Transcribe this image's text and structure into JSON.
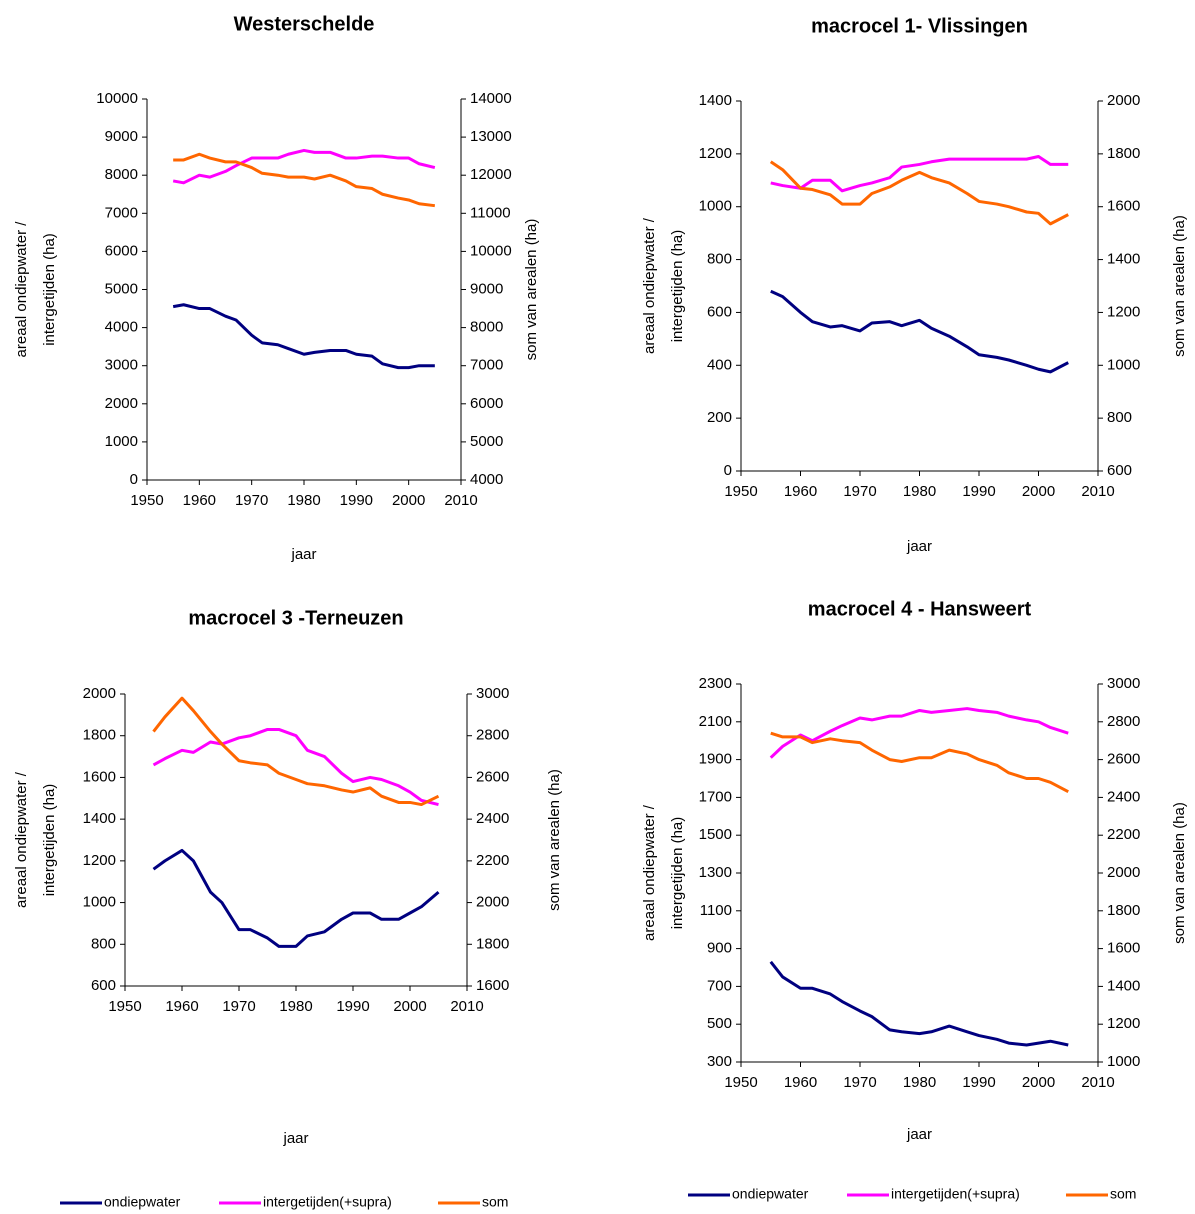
{
  "chart_data": [
    {
      "type": "line",
      "title": "Westerschelde",
      "xlabel": "jaar",
      "ylabel": [
        "areaal ondiepwater /",
        "intergetijden (ha)"
      ],
      "y2label": "som van arealen (ha)",
      "xlim": [
        1950,
        2010
      ],
      "xticks": [
        1950,
        1960,
        1970,
        1980,
        1990,
        2000,
        2010
      ],
      "ylim": [
        0,
        10000
      ],
      "yticks": [
        0,
        1000,
        2000,
        3000,
        4000,
        5000,
        6000,
        7000,
        8000,
        9000,
        10000
      ],
      "y2lim": [
        4000,
        14000
      ],
      "y2ticks": [
        4000,
        5000,
        6000,
        7000,
        8000,
        9000,
        10000,
        11000,
        12000,
        13000,
        14000
      ],
      "x": [
        1955,
        1957,
        1960,
        1962,
        1965,
        1967,
        1970,
        1972,
        1975,
        1977,
        1980,
        1982,
        1985,
        1988,
        1990,
        1993,
        1995,
        1998,
        2000,
        2002,
        2005
      ],
      "series": [
        {
          "name": "ondiepwater",
          "color": "#000080",
          "values": [
            4550,
            4600,
            4500,
            4500,
            4300,
            4200,
            3800,
            3600,
            3550,
            3450,
            3300,
            3350,
            3400,
            3400,
            3300,
            3250,
            3050,
            2950,
            2950,
            3000,
            3000
          ]
        },
        {
          "name": "intergetijden(+supra)",
          "color": "#ff00ff",
          "values": [
            7850,
            7800,
            8000,
            7950,
            8100,
            8250,
            8450,
            8450,
            8450,
            8550,
            8650,
            8600,
            8600,
            8450,
            8450,
            8500,
            8500,
            8450,
            8450,
            8300,
            8200
          ]
        },
        {
          "name": "som",
          "color": "#ff6600",
          "axis": "y2",
          "values": [
            12400,
            12400,
            12550,
            12450,
            12350,
            12350,
            12200,
            12050,
            12000,
            11950,
            11950,
            11900,
            12000,
            11850,
            11700,
            11650,
            11500,
            11400,
            11350,
            11250,
            11200
          ]
        }
      ]
    },
    {
      "type": "line",
      "title": "macrocel 1- Vlissingen",
      "xlabel": "jaar",
      "ylabel": [
        "areaal ondiepwater /",
        "intergetijden (ha)"
      ],
      "y2label": "som van arealen (ha)",
      "xlim": [
        1950,
        2010
      ],
      "xticks": [
        1950,
        1960,
        1970,
        1980,
        1990,
        2000,
        2010
      ],
      "ylim": [
        0,
        1400
      ],
      "yticks": [
        0,
        200,
        400,
        600,
        800,
        1000,
        1200,
        1400
      ],
      "y2lim": [
        600,
        2000
      ],
      "y2ticks": [
        600,
        800,
        1000,
        1200,
        1400,
        1600,
        1800,
        2000
      ],
      "x": [
        1955,
        1957,
        1960,
        1962,
        1965,
        1967,
        1970,
        1972,
        1975,
        1977,
        1980,
        1982,
        1985,
        1988,
        1990,
        1993,
        1995,
        1998,
        2000,
        2002,
        2005
      ],
      "series": [
        {
          "name": "ondiepwater",
          "color": "#000080",
          "values": [
            680,
            660,
            600,
            565,
            545,
            550,
            530,
            560,
            565,
            550,
            570,
            540,
            510,
            470,
            440,
            430,
            420,
            400,
            385,
            375,
            410
          ]
        },
        {
          "name": "intergetijden(+supra)",
          "color": "#ff00ff",
          "values": [
            1090,
            1080,
            1070,
            1100,
            1100,
            1060,
            1080,
            1090,
            1110,
            1150,
            1160,
            1170,
            1180,
            1180,
            1180,
            1180,
            1180,
            1180,
            1190,
            1160,
            1160
          ]
        },
        {
          "name": "som",
          "color": "#ff6600",
          "axis": "y2",
          "values": [
            1770,
            1740,
            1670,
            1665,
            1645,
            1610,
            1610,
            1650,
            1675,
            1700,
            1730,
            1710,
            1690,
            1650,
            1620,
            1610,
            1600,
            1580,
            1575,
            1535,
            1570
          ]
        }
      ]
    },
    {
      "type": "line",
      "title": "macrocel 3 -Terneuzen",
      "xlabel": "jaar",
      "ylabel": [
        "areaal ondiepwater /",
        "intergetijden (ha)"
      ],
      "y2label": "som van arealen (ha)",
      "xlim": [
        1950,
        2010
      ],
      "xticks": [
        1950,
        1960,
        1970,
        1980,
        1990,
        2000,
        2010
      ],
      "ylim": [
        600,
        2000
      ],
      "yticks": [
        600,
        800,
        1000,
        1200,
        1400,
        1600,
        1800,
        2000
      ],
      "y2lim": [
        1600,
        3000
      ],
      "y2ticks": [
        1600,
        1800,
        2000,
        2200,
        2400,
        2600,
        2800,
        3000
      ],
      "x": [
        1955,
        1957,
        1960,
        1962,
        1965,
        1967,
        1970,
        1972,
        1975,
        1977,
        1980,
        1982,
        1985,
        1988,
        1990,
        1993,
        1995,
        1998,
        2000,
        2002,
        2005
      ],
      "series": [
        {
          "name": "ondiepwater",
          "color": "#000080",
          "values": [
            1160,
            1200,
            1250,
            1200,
            1050,
            1000,
            870,
            870,
            830,
            790,
            790,
            840,
            860,
            920,
            950,
            950,
            920,
            920,
            950,
            980,
            1050
          ]
        },
        {
          "name": "intergetijden(+supra)",
          "color": "#ff00ff",
          "values": [
            1660,
            1690,
            1730,
            1720,
            1770,
            1760,
            1790,
            1800,
            1830,
            1830,
            1800,
            1730,
            1700,
            1620,
            1580,
            1600,
            1590,
            1560,
            1530,
            1490,
            1470
          ]
        },
        {
          "name": "som",
          "color": "#ff6600",
          "axis": "y2",
          "values": [
            2820,
            2890,
            2980,
            2920,
            2820,
            2760,
            2680,
            2670,
            2660,
            2620,
            2590,
            2570,
            2560,
            2540,
            2530,
            2550,
            2510,
            2480,
            2480,
            2470,
            2510
          ]
        }
      ]
    },
    {
      "type": "line",
      "title": "macrocel 4 - Hansweert",
      "xlabel": "jaar",
      "ylabel": [
        "areaal ondiepwater /",
        "intergetijden (ha)"
      ],
      "y2label": "som van arealen (ha)",
      "xlim": [
        1950,
        2010
      ],
      "xticks": [
        1950,
        1960,
        1970,
        1980,
        1990,
        2000,
        2010
      ],
      "ylim": [
        300,
        2300
      ],
      "yticks": [
        300,
        500,
        700,
        900,
        1100,
        1300,
        1500,
        1700,
        1900,
        2100,
        2300
      ],
      "y2lim": [
        1000,
        3000
      ],
      "y2ticks": [
        1000,
        1200,
        1400,
        1600,
        1800,
        2000,
        2200,
        2400,
        2600,
        2800,
        3000
      ],
      "x": [
        1955,
        1957,
        1960,
        1962,
        1965,
        1967,
        1970,
        1972,
        1975,
        1977,
        1980,
        1982,
        1985,
        1988,
        1990,
        1993,
        1995,
        1998,
        2000,
        2002,
        2005
      ],
      "series": [
        {
          "name": "ondiepwater",
          "color": "#000080",
          "values": [
            830,
            750,
            690,
            690,
            660,
            620,
            570,
            540,
            470,
            460,
            450,
            460,
            490,
            460,
            440,
            420,
            400,
            390,
            400,
            410,
            390
          ]
        },
        {
          "name": "intergetijden(+supra)",
          "color": "#ff00ff",
          "values": [
            1910,
            1970,
            2030,
            2000,
            2050,
            2080,
            2120,
            2110,
            2130,
            2130,
            2160,
            2150,
            2160,
            2170,
            2160,
            2150,
            2130,
            2110,
            2100,
            2070,
            2040
          ]
        },
        {
          "name": "som",
          "color": "#ff6600",
          "axis": "y2",
          "values": [
            2740,
            2720,
            2720,
            2690,
            2710,
            2700,
            2690,
            2650,
            2600,
            2590,
            2610,
            2610,
            2650,
            2630,
            2600,
            2570,
            2530,
            2500,
            2500,
            2480,
            2430
          ]
        }
      ]
    }
  ]
}
